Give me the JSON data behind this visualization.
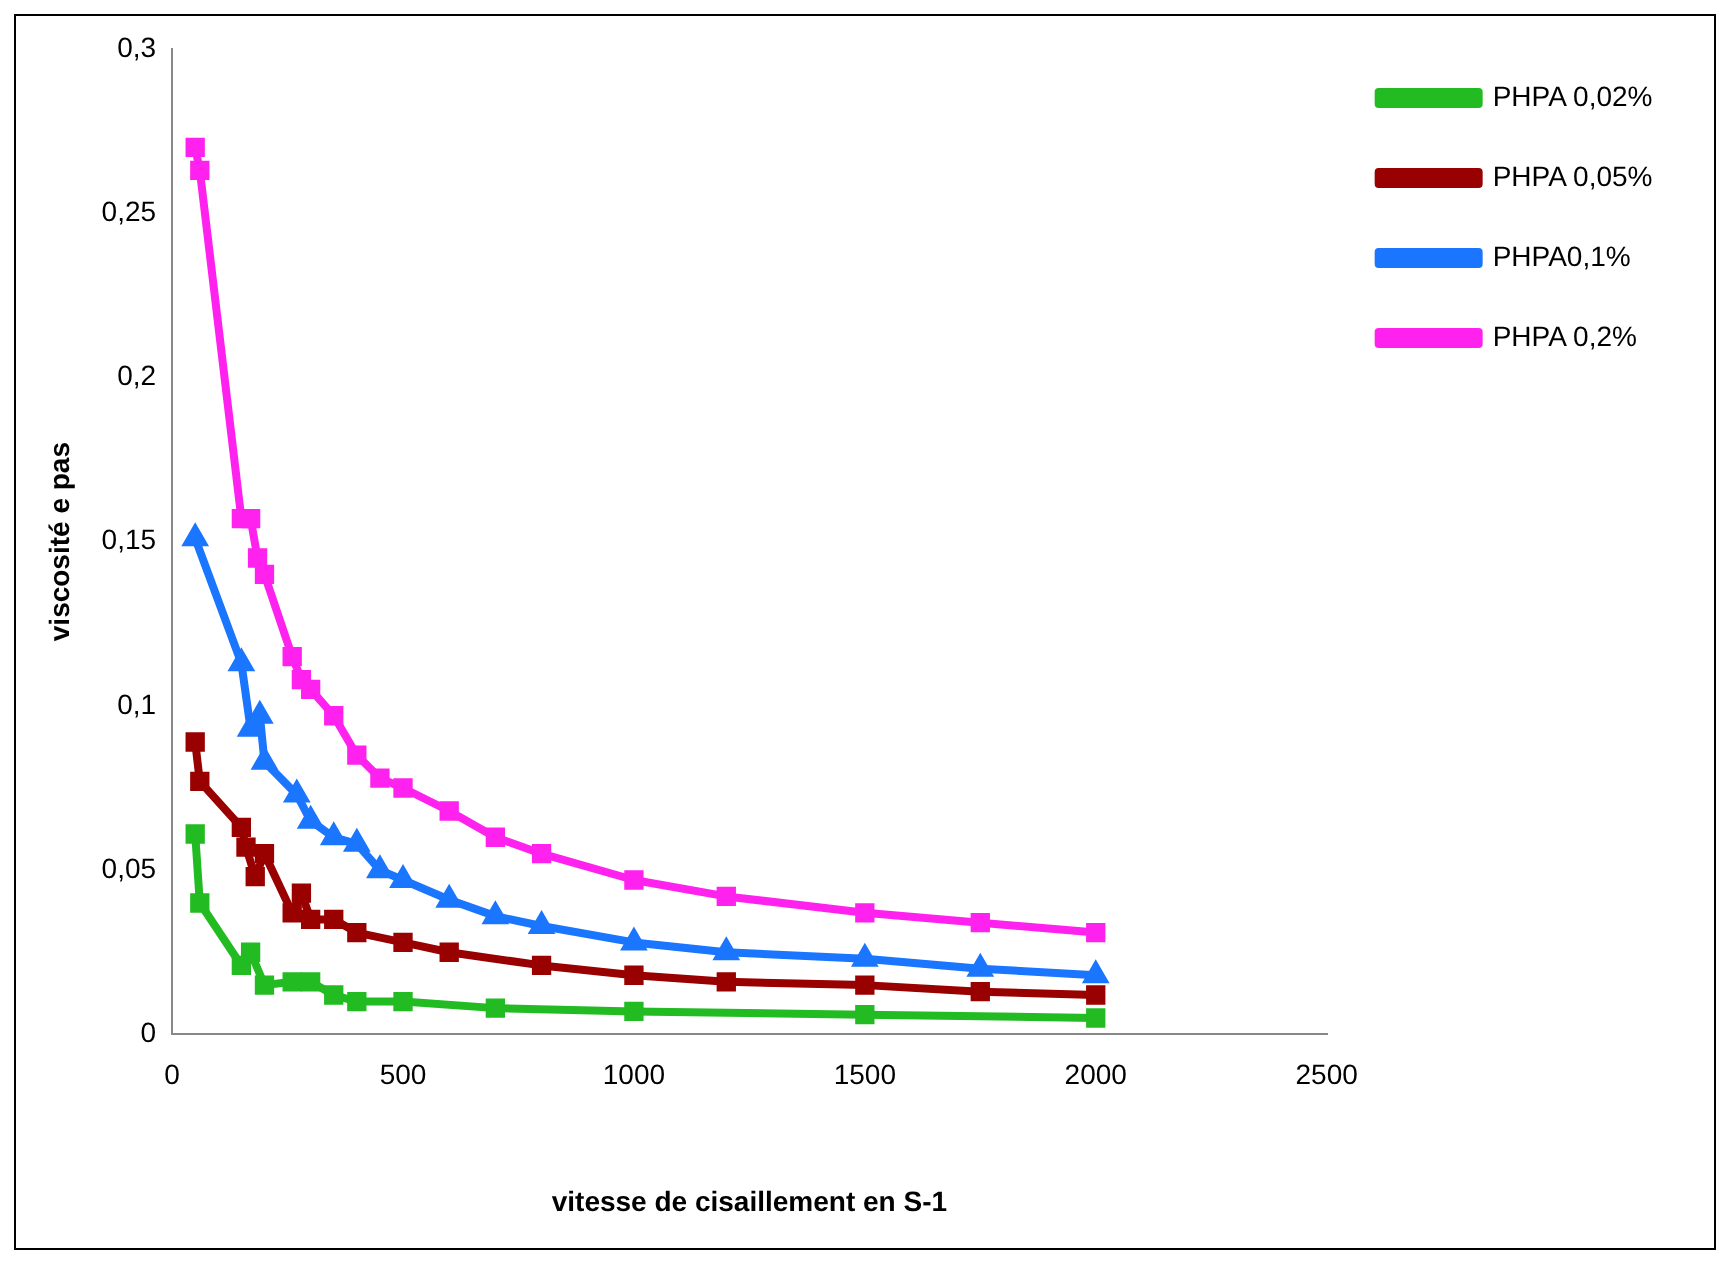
{
  "chart_data": {
    "type": "line",
    "xlabel": "vitesse de cisaillement en S-1",
    "ylabel": "viscosité e pas",
    "xlim": [
      0,
      2500
    ],
    "xticks": [
      0,
      500,
      1000,
      1500,
      2000,
      2500
    ],
    "ylim": [
      0,
      0.3
    ],
    "yticks": [
      {
        "value": 0,
        "label": "0"
      },
      {
        "value": 0.05,
        "label": "0,05"
      },
      {
        "value": 0.1,
        "label": "0,1"
      },
      {
        "value": 0.15,
        "label": "0,15"
      },
      {
        "value": 0.2,
        "label": "0,2"
      },
      {
        "value": 0.25,
        "label": "0,25"
      },
      {
        "value": 0.3,
        "label": "0,3"
      }
    ],
    "grid": false,
    "legend": "top right",
    "line_style": "solid",
    "marker": "square",
    "series": [
      {
        "name": "PHPA 0,02%",
        "color": "#22bb22",
        "x": [
          50,
          60,
          150,
          170,
          200,
          260,
          300,
          350,
          400,
          500,
          700,
          1000,
          1500,
          2000
        ],
        "values": [
          0.061,
          0.04,
          0.021,
          0.025,
          0.015,
          0.016,
          0.016,
          0.012,
          0.01,
          0.01,
          0.008,
          0.007,
          0.006,
          0.005
        ]
      },
      {
        "name": "PHPA 0,05%",
        "color": "#990000",
        "marker": "square",
        "x": [
          50,
          60,
          150,
          160,
          180,
          200,
          260,
          280,
          300,
          350,
          400,
          500,
          600,
          800,
          1000,
          1200,
          1500,
          1750,
          2000
        ],
        "values": [
          0.089,
          0.077,
          0.063,
          0.057,
          0.048,
          0.055,
          0.037,
          0.043,
          0.035,
          0.035,
          0.031,
          0.028,
          0.025,
          0.021,
          0.018,
          0.016,
          0.015,
          0.013,
          0.012
        ]
      },
      {
        "name": "PHPA0,1%",
        "color": "#1a75ff",
        "marker": "triangle",
        "x": [
          50,
          150,
          170,
          190,
          200,
          270,
          300,
          350,
          400,
          450,
          500,
          600,
          700,
          800,
          1000,
          1200,
          1500,
          1750,
          2000
        ],
        "values": [
          0.151,
          0.113,
          0.093,
          0.097,
          0.083,
          0.073,
          0.065,
          0.06,
          0.058,
          0.05,
          0.047,
          0.041,
          0.036,
          0.033,
          0.028,
          0.025,
          0.023,
          0.02,
          0.018
        ]
      },
      {
        "name": "PHPA 0,2%",
        "color": "#ff22ee",
        "marker": "square",
        "x": [
          50,
          60,
          150,
          170,
          185,
          200,
          260,
          280,
          300,
          350,
          400,
          450,
          500,
          600,
          700,
          800,
          1000,
          1200,
          1500,
          1750,
          2000
        ],
        "values": [
          0.27,
          0.263,
          0.157,
          0.157,
          0.145,
          0.14,
          0.115,
          0.108,
          0.105,
          0.097,
          0.085,
          0.078,
          0.075,
          0.068,
          0.06,
          0.055,
          0.047,
          0.042,
          0.037,
          0.034,
          0.031
        ]
      }
    ]
  }
}
